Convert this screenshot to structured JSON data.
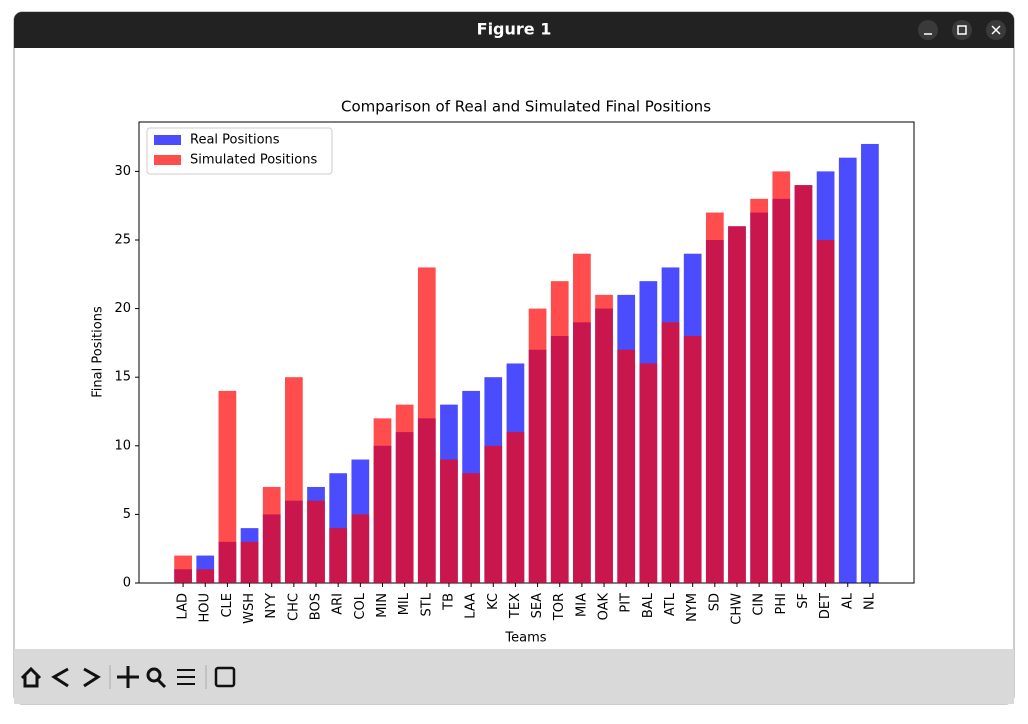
{
  "window": {
    "title": "Figure 1"
  },
  "chart_data": {
    "type": "bar",
    "title": "Comparison of Real and Simulated Final Positions",
    "x_label": "Teams",
    "y_label": "Final Positions",
    "categories": [
      "LAD",
      "HOU",
      "CLE",
      "WSH",
      "NYY",
      "CHC",
      "BOS",
      "ARI",
      "COL",
      "MIN",
      "MIL",
      "STL",
      "TB",
      "LAA",
      "KC",
      "TEX",
      "SEA",
      "TOR",
      "MIA",
      "OAK",
      "PIT",
      "BAL",
      "ATL",
      "NYM",
      "SD",
      "CHW",
      "CIN",
      "PHI",
      "SF",
      "DET",
      "AL",
      "NL"
    ],
    "series": [
      {
        "name": "Real Positions",
        "color": "#0000ff",
        "values": [
          1,
          2,
          3,
          4,
          5,
          6,
          7,
          8,
          9,
          10,
          11,
          12,
          13,
          14,
          15,
          16,
          17,
          18,
          19,
          20,
          21,
          22,
          23,
          24,
          25,
          26,
          27,
          28,
          29,
          30,
          31,
          32
        ]
      },
      {
        "name": "Simulated Positions",
        "color": "#ff0000",
        "values": [
          2,
          1,
          14,
          3,
          7,
          15,
          6,
          4,
          5,
          12,
          13,
          23,
          9,
          8,
          10,
          11,
          20,
          22,
          24,
          21,
          17,
          16,
          19,
          18,
          27,
          26,
          28,
          30,
          29,
          25,
          null,
          null
        ]
      }
    ],
    "opacity": 0.7,
    "ylim": [
      0,
      33.6
    ],
    "yticks": [
      0,
      5,
      10,
      15,
      20,
      25,
      30
    ],
    "grid": false,
    "legend": "upper left"
  }
}
